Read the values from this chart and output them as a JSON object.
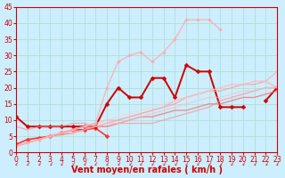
{
  "title": "",
  "xlabel": "Vent moyen/en rafales ( km/h )",
  "ylabel": "",
  "xlim": [
    0,
    23
  ],
  "ylim": [
    0,
    45
  ],
  "yticks": [
    0,
    5,
    10,
    15,
    20,
    25,
    30,
    35,
    40,
    45
  ],
  "xticks": [
    0,
    1,
    2,
    3,
    4,
    5,
    6,
    7,
    8,
    9,
    10,
    11,
    12,
    13,
    14,
    15,
    16,
    17,
    18,
    19,
    20,
    21,
    22,
    23
  ],
  "bg_color": "#cceeff",
  "grid_color": "#aaddcc",
  "lines": [
    {
      "x": [
        0,
        1,
        2,
        3,
        4,
        5,
        6,
        7,
        8,
        9,
        10,
        11,
        12,
        13,
        14,
        15,
        16,
        17,
        18,
        19,
        20,
        21,
        22,
        23
      ],
      "y": [
        2.5,
        4,
        4.5,
        5,
        6,
        7,
        7,
        7.5,
        5,
        null,
        null,
        null,
        null,
        null,
        null,
        null,
        null,
        null,
        null,
        null,
        null,
        null,
        null,
        null
      ],
      "color": "#ff3333",
      "lw": 1.2,
      "marker": "D",
      "ms": 2.5,
      "alpha": 1.0
    },
    {
      "x": [
        0,
        1,
        2,
        3,
        4,
        5,
        6,
        7,
        8,
        9,
        10,
        11,
        12,
        13,
        14,
        15,
        16,
        17,
        18,
        19,
        20,
        21,
        22,
        23
      ],
      "y": [
        11,
        8,
        8,
        8,
        8,
        8,
        8,
        8,
        15,
        20,
        17,
        17,
        23,
        23,
        17,
        27,
        25,
        25,
        14,
        14,
        14,
        null,
        16,
        20
      ],
      "color": "#cc0000",
      "lw": 1.4,
      "marker": "D",
      "ms": 2.5,
      "alpha": 1.0
    },
    {
      "x": [
        0,
        1,
        2,
        3,
        4,
        5,
        6,
        7,
        8,
        9,
        10,
        11,
        12,
        13,
        14,
        15,
        16,
        17,
        18,
        19,
        20,
        21,
        22,
        23
      ],
      "y": [
        2,
        3,
        4,
        5,
        5.5,
        6,
        7,
        8,
        8,
        9,
        10,
        11,
        11,
        12,
        13,
        13,
        14,
        15,
        15,
        16,
        17,
        17,
        18,
        19
      ],
      "color": "#ff6666",
      "lw": 1.0,
      "marker": null,
      "ms": 0,
      "alpha": 0.7
    },
    {
      "x": [
        0,
        1,
        2,
        3,
        4,
        5,
        6,
        7,
        8,
        9,
        10,
        11,
        12,
        13,
        14,
        15,
        16,
        17,
        18,
        19,
        20,
        21,
        22,
        23
      ],
      "y": [
        2,
        3,
        4,
        5,
        6,
        7,
        8,
        8,
        9,
        10,
        11,
        12,
        13,
        14,
        15,
        17,
        18,
        19,
        19,
        20,
        21,
        21,
        22,
        20
      ],
      "color": "#ff9999",
      "lw": 1.0,
      "marker": null,
      "ms": 0,
      "alpha": 0.7
    },
    {
      "x": [
        0,
        1,
        2,
        3,
        4,
        5,
        6,
        7,
        8,
        9,
        10,
        11,
        12,
        13,
        14,
        15,
        16,
        17,
        18,
        19,
        20,
        21,
        22,
        23
      ],
      "y": [
        2,
        3,
        4,
        5,
        6,
        7,
        8,
        9,
        10,
        10,
        11,
        12,
        13,
        14,
        16,
        17,
        18,
        19,
        20,
        21,
        21,
        22,
        22,
        25
      ],
      "color": "#ffaaaa",
      "lw": 1.0,
      "marker": null,
      "ms": 0,
      "alpha": 0.7
    },
    {
      "x": [
        0,
        1,
        2,
        3,
        4,
        5,
        6,
        7,
        8,
        9,
        10,
        11,
        12,
        13,
        14,
        15,
        16,
        17,
        18,
        19,
        20,
        21,
        22,
        23
      ],
      "y": [
        8,
        7,
        8,
        8,
        8,
        9,
        9,
        8,
        8,
        9,
        9,
        9,
        9,
        10,
        11,
        12,
        13,
        14,
        16,
        17,
        18,
        19,
        20,
        20
      ],
      "color": "#ff8888",
      "lw": 1.0,
      "marker": null,
      "ms": 0,
      "alpha": 0.6
    },
    {
      "x": [
        0,
        1,
        2,
        3,
        4,
        5,
        6,
        7,
        8,
        9,
        10,
        11,
        12,
        13,
        14,
        15,
        16,
        17,
        18,
        19,
        20,
        21,
        22,
        23
      ],
      "y": [
        2,
        3,
        4,
        5,
        6,
        6,
        7,
        8,
        9,
        9,
        10,
        11,
        12,
        13,
        14,
        15,
        16,
        17,
        17,
        18,
        19,
        19,
        20,
        20
      ],
      "color": "#ffbbbb",
      "lw": 1.0,
      "marker": null,
      "ms": 0,
      "alpha": 0.6
    },
    {
      "x": [
        0,
        1,
        2,
        3,
        4,
        5,
        6,
        7,
        8,
        9,
        10,
        11,
        12,
        13,
        14,
        15,
        16,
        17,
        18,
        19,
        20,
        21,
        22,
        23
      ],
      "y": [
        2,
        3,
        4,
        5,
        6,
        7,
        8,
        9,
        10,
        11,
        12,
        13,
        14,
        15,
        16,
        17,
        18,
        19,
        20,
        21,
        21,
        22,
        22,
        20
      ],
      "color": "#ffcccc",
      "lw": 1.0,
      "marker": null,
      "ms": 0,
      "alpha": 0.5
    },
    {
      "x": [
        0,
        1,
        2,
        3,
        4,
        5,
        6,
        7,
        8,
        9,
        10,
        11,
        12,
        13,
        14,
        15,
        16,
        17,
        18,
        19,
        20,
        21,
        22,
        23
      ],
      "y": [
        2,
        3,
        4,
        5,
        6,
        7,
        8,
        9,
        20,
        28,
        30,
        31,
        28,
        31,
        35,
        41,
        41,
        41,
        38,
        null,
        null,
        null,
        null,
        null
      ],
      "color": "#ffaaaa",
      "lw": 1.0,
      "marker": "D",
      "ms": 2.0,
      "alpha": 0.8
    }
  ],
  "arrow_color": "#cc0000",
  "xlabel_color": "#cc0000",
  "xlabel_fontsize": 7,
  "tick_color": "#cc0000",
  "tick_fontsize": 5.5
}
